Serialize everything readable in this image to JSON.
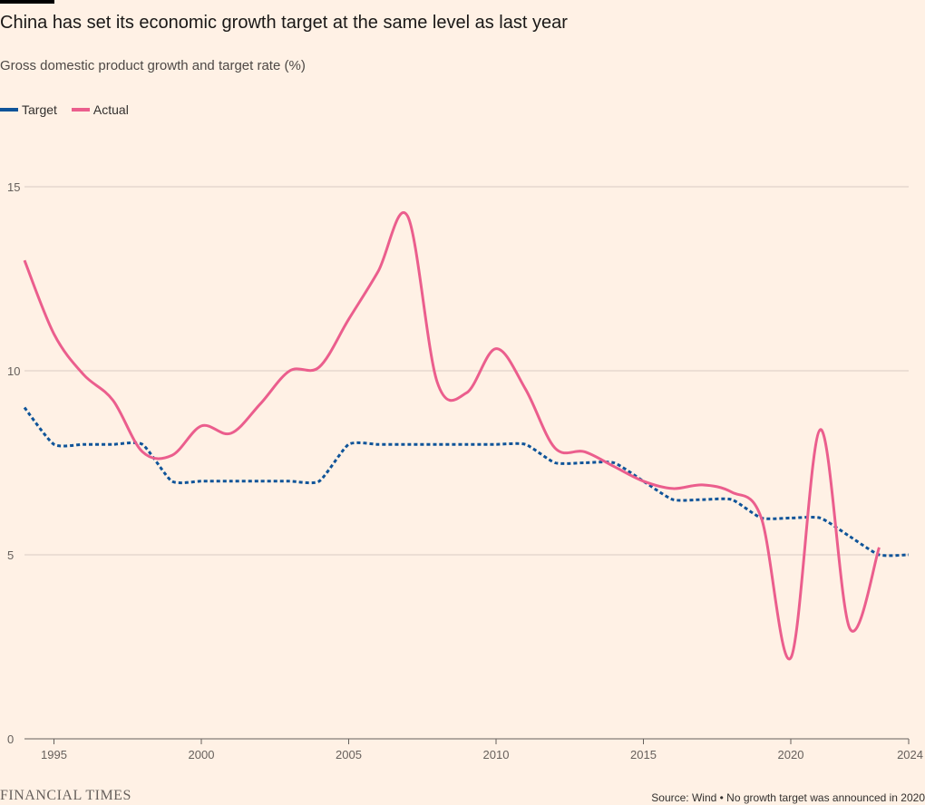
{
  "header": {
    "title": "China has set its economic growth target at the same level as last year",
    "subtitle": "Gross domestic product growth and target rate (%)"
  },
  "footer": {
    "brand": "FINANCIAL TIMES",
    "source": "Source: Wind • No growth target was announced in 2020"
  },
  "colors": {
    "background": "#fff1e5",
    "target": "#0f5499",
    "actual": "#eb5e8d",
    "grid": "#d9ccc3"
  },
  "chart_data": {
    "type": "line",
    "title": "China has set its economic growth target at the same level as last year",
    "subtitle": "Gross domestic product growth and target rate (%)",
    "xlabel": "",
    "ylabel": "",
    "xlim": [
      1994,
      2024
    ],
    "ylim": [
      0,
      15
    ],
    "x_ticks": [
      "1995",
      "2000",
      "2005",
      "2010",
      "2015",
      "2020",
      "2024"
    ],
    "y_ticks": [
      "0",
      "5",
      "10",
      "15"
    ],
    "grid": true,
    "legend_position": "top-left",
    "series": [
      {
        "name": "Target",
        "style": "dotted",
        "x": [
          1994,
          1995,
          1996,
          1997,
          1998,
          1999,
          2000,
          2001,
          2002,
          2003,
          2004,
          2005,
          2006,
          2007,
          2008,
          2009,
          2010,
          2011,
          2012,
          2013,
          2014,
          2015,
          2016,
          2017,
          2018,
          2019,
          2020,
          2021,
          2022,
          2023,
          2024
        ],
        "values": [
          9,
          8,
          8,
          8,
          8,
          7,
          7,
          7,
          7,
          7,
          7,
          8,
          8,
          8,
          8,
          8,
          8,
          8,
          7.5,
          7.5,
          7.5,
          7,
          6.5,
          6.5,
          6.5,
          6,
          6,
          6,
          5.5,
          5,
          5
        ]
      },
      {
        "name": "Actual",
        "style": "solid",
        "x": [
          1994,
          1995,
          1996,
          1997,
          1998,
          1999,
          2000,
          2001,
          2002,
          2003,
          2004,
          2005,
          2006,
          2007,
          2008,
          2009,
          2010,
          2011,
          2012,
          2013,
          2014,
          2015,
          2016,
          2017,
          2018,
          2019,
          2020,
          2021,
          2022,
          2023
        ],
        "values": [
          13,
          11,
          9.9,
          9.2,
          7.8,
          7.7,
          8.5,
          8.3,
          9.1,
          10,
          10.1,
          11.4,
          12.7,
          14.2,
          9.7,
          9.4,
          10.6,
          9.5,
          7.9,
          7.8,
          7.4,
          7,
          6.8,
          6.9,
          6.7,
          6,
          2.2,
          8.4,
          3,
          5.2
        ]
      }
    ]
  }
}
